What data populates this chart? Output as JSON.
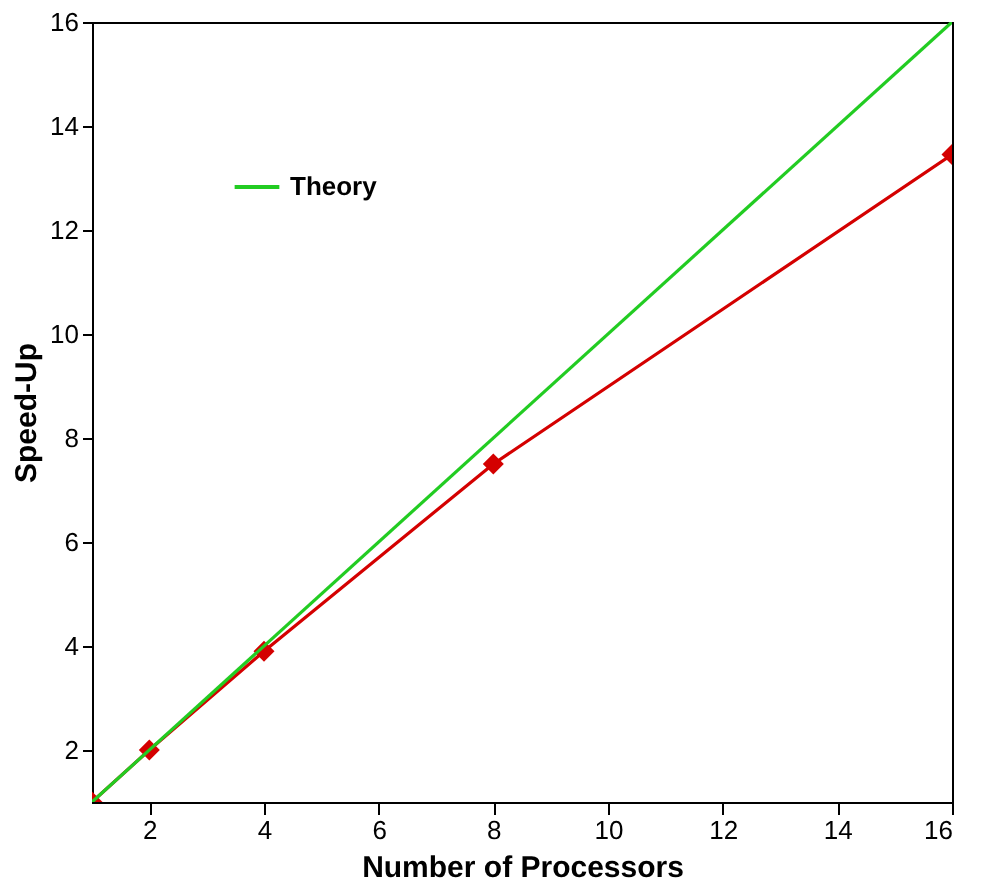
{
  "chart_data": {
    "type": "line",
    "xlabel": "Number of Processors",
    "ylabel": "Speed-Up",
    "xlim": [
      1,
      16
    ],
    "xticks": [
      2,
      4,
      6,
      8,
      10,
      12,
      14,
      16
    ],
    "ylim": [
      1,
      16
    ],
    "yticks": [
      2,
      4,
      6,
      8,
      10,
      12,
      14,
      16
    ],
    "grid": false,
    "legend": "top left",
    "series": [
      {
        "color": "#d40000",
        "marker": "diamond",
        "x": [
          1,
          2,
          4,
          8,
          16
        ],
        "values": [
          1,
          2,
          3.9,
          7.5,
          13.45
        ]
      },
      {
        "name": "Theory",
        "color": "#22cc22",
        "marker": "none",
        "x": [
          1,
          16
        ],
        "values": [
          1,
          16
        ]
      }
    ]
  }
}
